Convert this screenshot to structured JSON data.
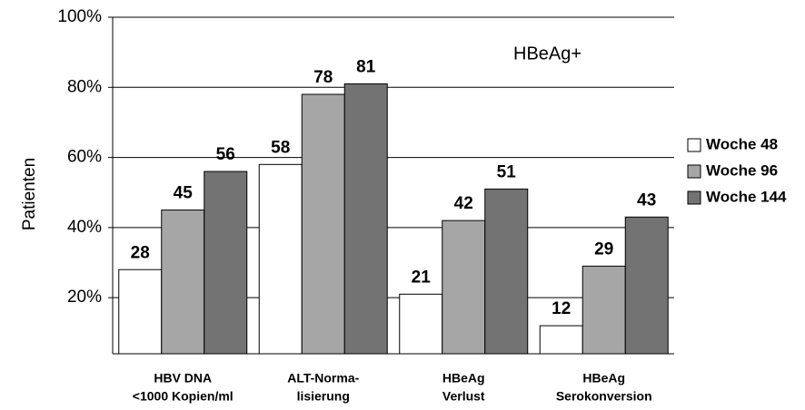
{
  "chart_data": {
    "type": "bar",
    "annotation": "HBeAg+",
    "y_label": "Patienten",
    "categories": [
      [
        "HBV DNA",
        "<1000 Kopien/ml"
      ],
      [
        "ALT-Norma-",
        "lisierung"
      ],
      [
        "HBeAg",
        "Verlust"
      ],
      [
        "HBeAg",
        "Serokonversion"
      ]
    ],
    "series": [
      {
        "name": "Woche 48",
        "color": "#ffffff",
        "values": [
          28,
          58,
          21,
          12
        ]
      },
      {
        "name": "Woche 96",
        "color": "#a6a6a6",
        "values": [
          45,
          78,
          42,
          29
        ]
      },
      {
        "name": "Woche 144",
        "color": "#737373",
        "values": [
          56,
          81,
          51,
          43
        ]
      }
    ],
    "ylim": [
      4,
      100
    ],
    "yticks": [
      {
        "value": 20,
        "label": "20%"
      },
      {
        "value": 40,
        "label": "40%"
      },
      {
        "value": 60,
        "label": "60%"
      },
      {
        "value": 80,
        "label": "80%"
      },
      {
        "value": 100,
        "label": "100%"
      }
    ],
    "grid": true,
    "legend": "right"
  }
}
